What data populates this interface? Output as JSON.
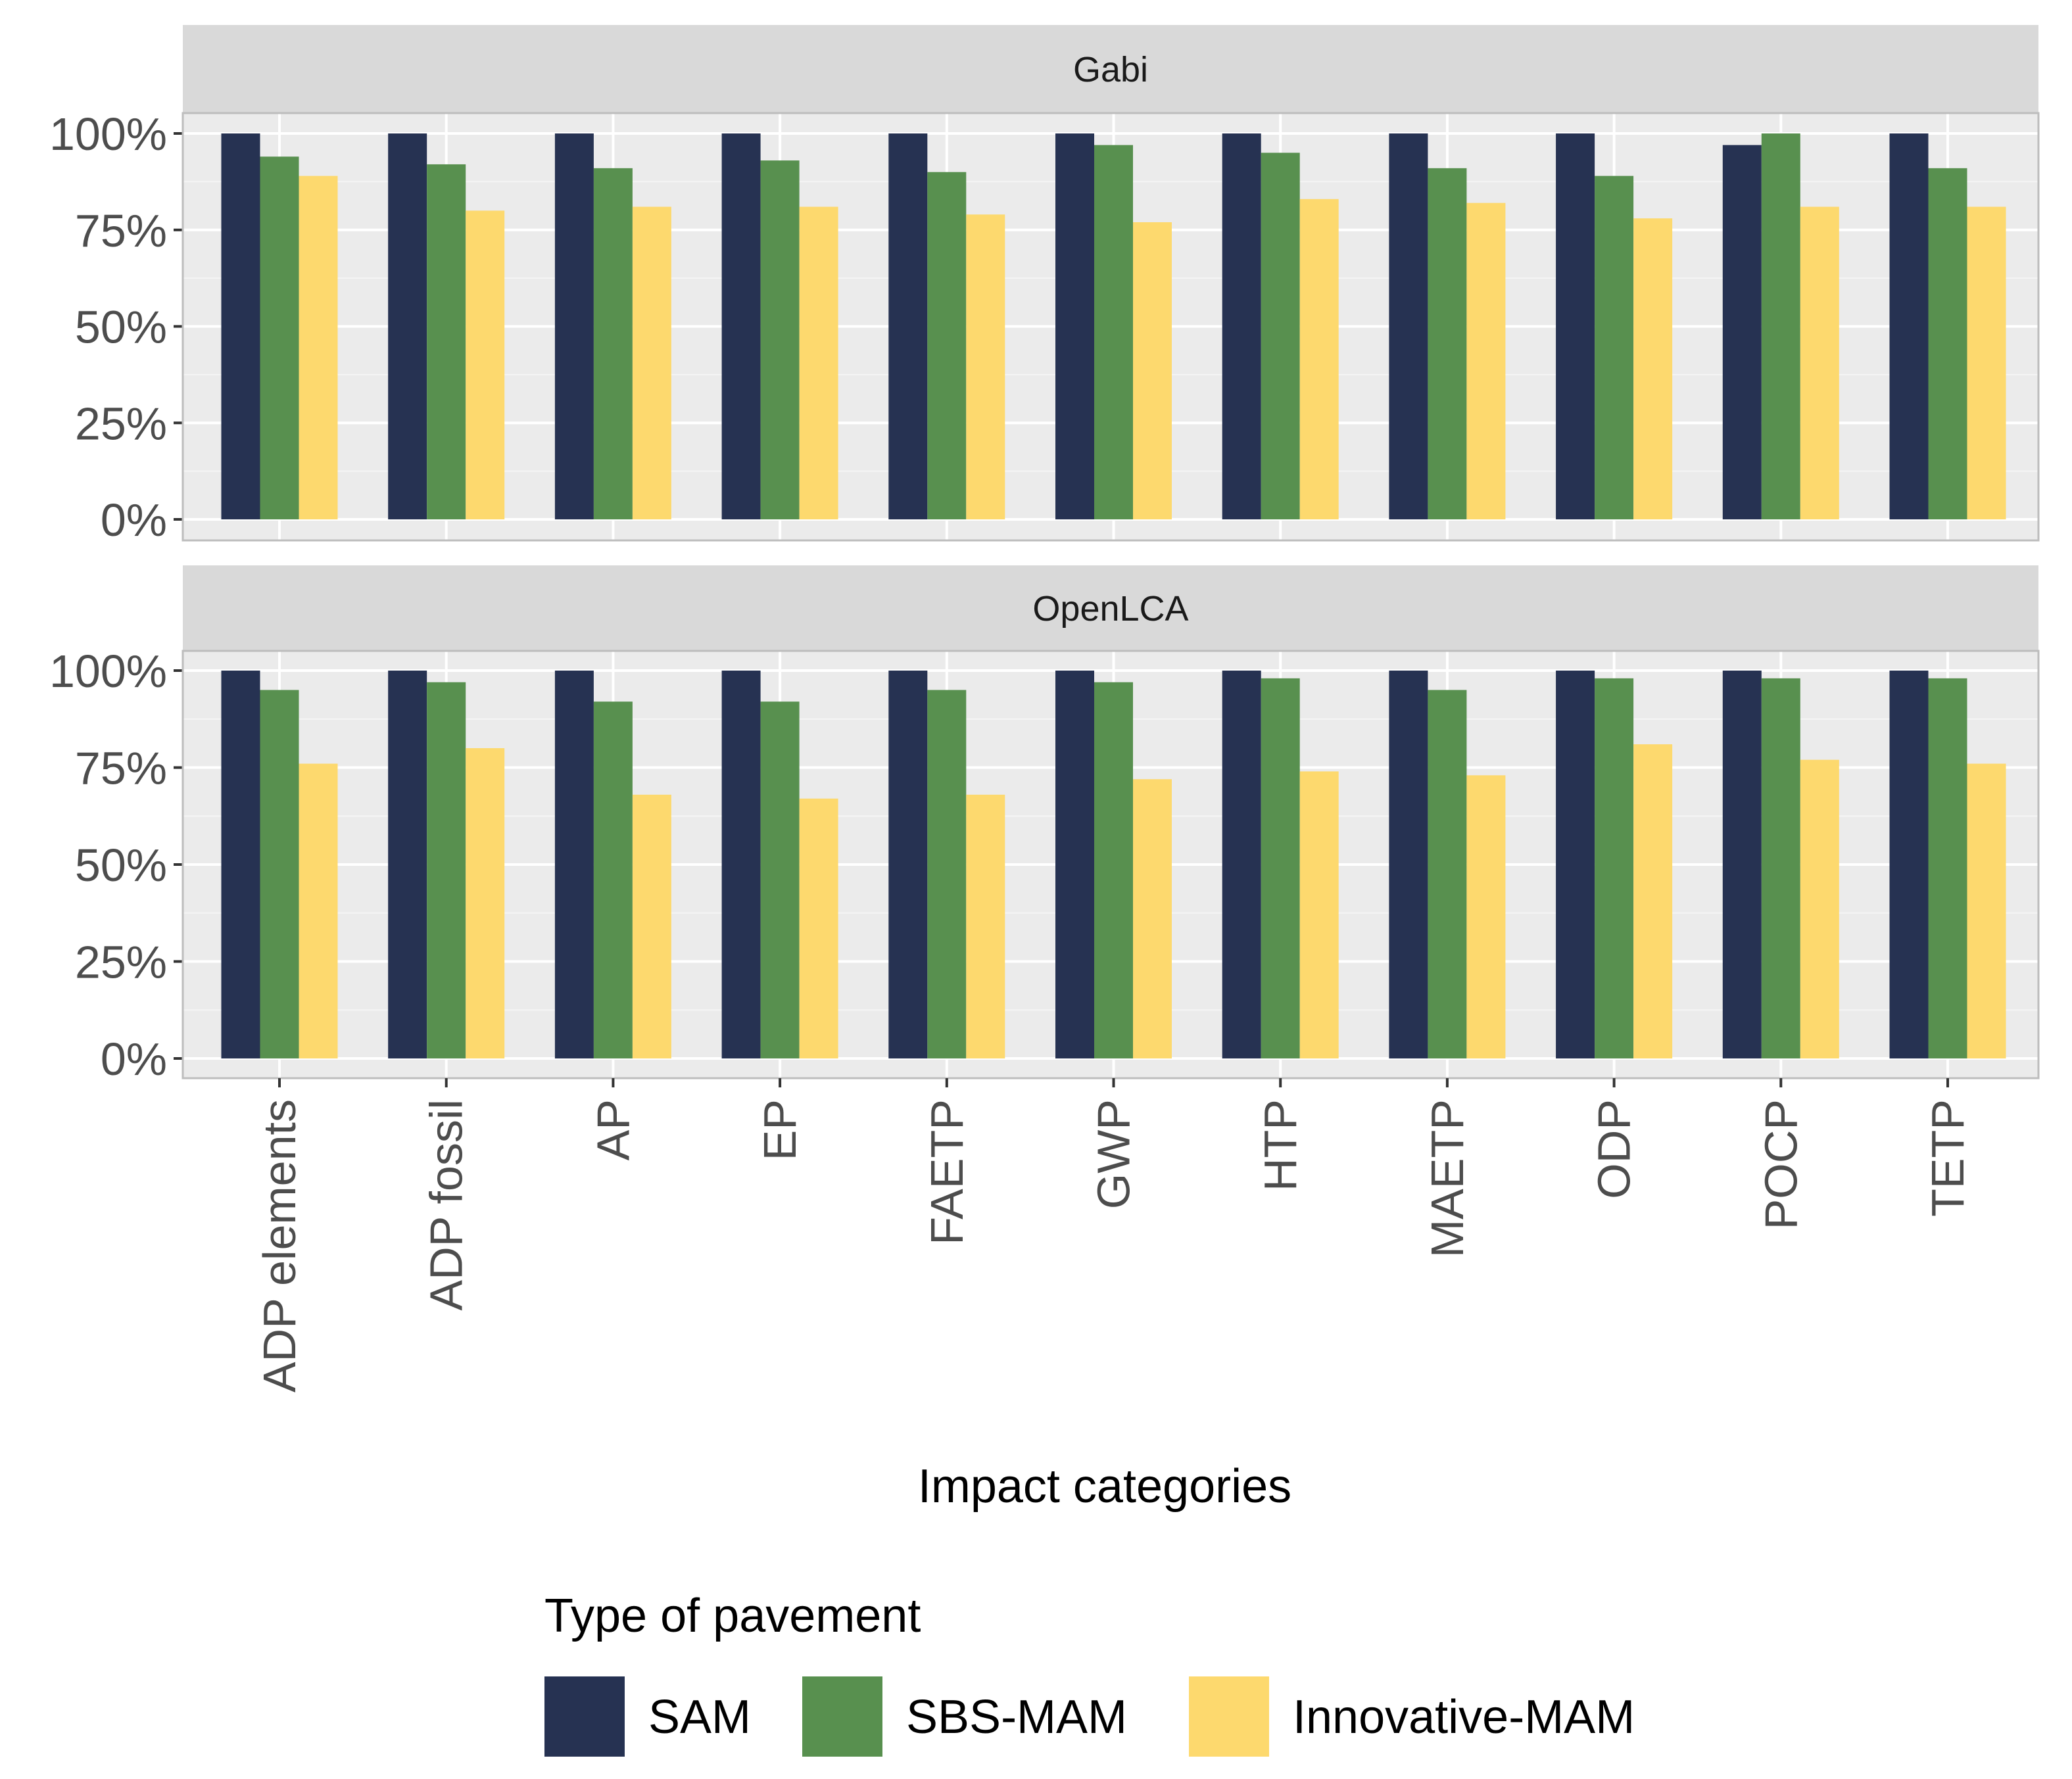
{
  "chart_data": {
    "type": "bar",
    "xlabel": "Impact categories",
    "ylabel": "",
    "ylim": [
      0,
      100
    ],
    "y_ticks": [
      "0%",
      "25%",
      "50%",
      "75%",
      "100%"
    ],
    "y_tick_values": [
      0,
      25,
      50,
      75,
      100
    ],
    "categories": [
      "ADP elements",
      "ADP fossil",
      "AP",
      "EP",
      "FAETP",
      "GWP",
      "HTP",
      "MAETP",
      "ODP",
      "POCP",
      "TETP"
    ],
    "legend_title": "Type of pavement",
    "legend_position": "bottom",
    "colors": {
      "SAM": "#263252",
      "SBS-MAM": "#58904f",
      "Innovative-MAM": "#fdd96e"
    },
    "panels": [
      {
        "name": "Gabi",
        "series": [
          {
            "name": "SAM",
            "values": [
              100,
              100,
              100,
              100,
              100,
              100,
              100,
              100,
              100,
              97,
              100
            ]
          },
          {
            "name": "SBS-MAM",
            "values": [
              94,
              92,
              91,
              93,
              90,
              97,
              95,
              91,
              89,
              100,
              91
            ]
          },
          {
            "name": "Innovative-MAM",
            "values": [
              89,
              80,
              81,
              81,
              79,
              77,
              83,
              82,
              78,
              81,
              81
            ]
          }
        ]
      },
      {
        "name": "OpenLCA",
        "series": [
          {
            "name": "SAM",
            "values": [
              100,
              100,
              100,
              100,
              100,
              100,
              100,
              100,
              100,
              100,
              100
            ]
          },
          {
            "name": "SBS-MAM",
            "values": [
              95,
              97,
              92,
              92,
              95,
              97,
              98,
              95,
              98,
              98,
              98
            ]
          },
          {
            "name": "Innovative-MAM",
            "values": [
              76,
              80,
              68,
              67,
              68,
              72,
              74,
              73,
              81,
              77,
              76
            ]
          }
        ]
      }
    ]
  }
}
